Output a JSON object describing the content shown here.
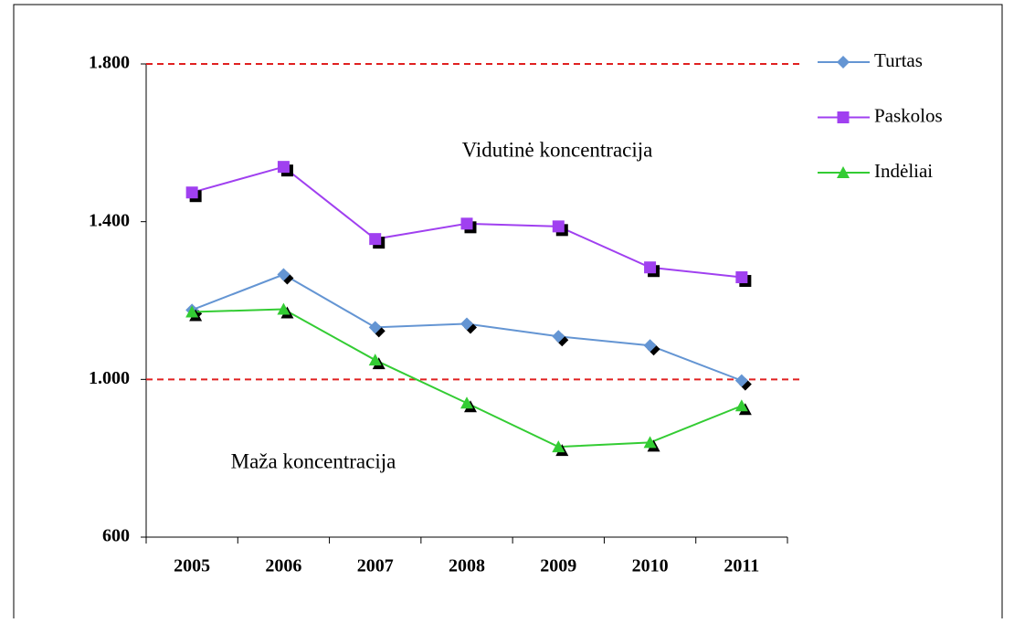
{
  "chart_data": {
    "type": "line",
    "categories": [
      "2005",
      "2006",
      "2007",
      "2008",
      "2009",
      "2010",
      "2011"
    ],
    "series": [
      {
        "name": "Turtas",
        "color": "#6495d3",
        "marker": "diamond",
        "values": [
          1176,
          1266,
          1132,
          1141,
          1109,
          1086,
          997
        ]
      },
      {
        "name": "Paskolos",
        "color": "#a040f0",
        "marker": "square",
        "values": [
          1474,
          1539,
          1356,
          1395,
          1388,
          1284,
          1259
        ]
      },
      {
        "name": "Indėliai",
        "color": "#33cc33",
        "marker": "triangle",
        "values": [
          1171,
          1178,
          1049,
          940,
          829,
          840,
          933
        ]
      }
    ],
    "ylim": [
      600,
      1800
    ],
    "yticks": [
      {
        "value": 1800,
        "label": "1.800"
      },
      {
        "value": 1400,
        "label": "1.400"
      },
      {
        "value": 1000,
        "label": "1.000"
      },
      600
    ],
    "reference_lines": [
      1800,
      1000
    ],
    "reference_color": "#e02020",
    "annotations": [
      "Vidutinė koncentracija",
      "Maža koncentracija"
    ],
    "legend": "right"
  }
}
